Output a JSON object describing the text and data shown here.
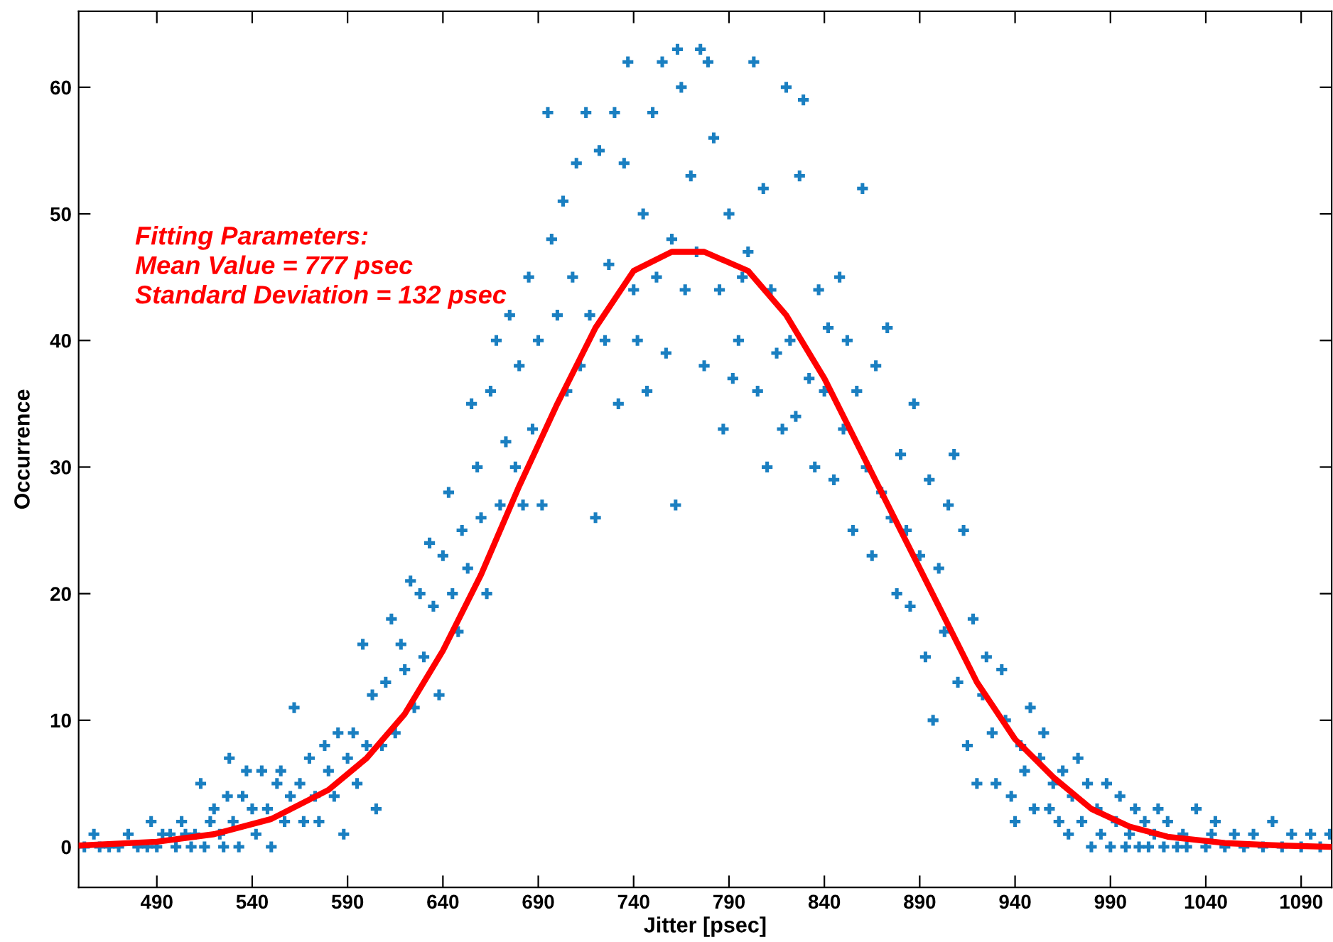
{
  "chart_data": {
    "type": "scatter",
    "xlabel": "Jitter [psec]",
    "ylabel": "Occurrence",
    "xlim": [
      449,
      1106
    ],
    "ylim": [
      -3.2,
      66
    ],
    "xticks": [
      490,
      540,
      590,
      640,
      690,
      740,
      790,
      840,
      890,
      940,
      990,
      1040,
      1090
    ],
    "yticks": [
      0,
      10,
      20,
      30,
      40,
      50,
      60
    ],
    "grid": false,
    "legend": false,
    "marker": "cross",
    "annotations": [
      "Fitting Parameters:\nMean Value = 777 psec\nStandard Deviation = 132 psec"
    ],
    "series": [
      {
        "color": "#1a7fc1",
        "x": [
          452,
          457,
          460,
          465,
          470,
          475,
          480,
          485,
          487,
          490,
          493,
          497,
          500,
          503,
          505,
          508,
          510,
          513,
          515,
          518,
          520,
          523,
          525,
          527,
          528,
          530,
          533,
          535,
          537,
          540,
          542,
          545,
          548,
          550,
          553,
          555,
          557,
          560,
          562,
          565,
          567,
          570,
          573,
          575,
          578,
          580,
          583,
          585,
          588,
          590,
          593,
          595,
          598,
          600,
          603,
          605,
          608,
          610,
          613,
          615,
          618,
          620,
          623,
          625,
          628,
          630,
          633,
          635,
          638,
          640,
          643,
          645,
          648,
          650,
          653,
          655,
          658,
          660,
          663,
          665,
          668,
          670,
          673,
          675,
          678,
          680,
          682,
          685,
          687,
          690,
          692,
          695,
          697,
          700,
          703,
          705,
          708,
          710,
          712,
          715,
          717,
          720,
          722,
          725,
          727,
          730,
          732,
          735,
          737,
          740,
          742,
          745,
          747,
          750,
          752,
          755,
          757,
          760,
          762,
          763,
          765,
          767,
          770,
          773,
          775,
          777,
          779,
          782,
          785,
          787,
          790,
          792,
          795,
          797,
          800,
          803,
          805,
          808,
          810,
          812,
          815,
          818,
          820,
          822,
          825,
          827,
          829,
          832,
          835,
          837,
          840,
          842,
          845,
          848,
          850,
          852,
          855,
          857,
          860,
          862,
          865,
          867,
          870,
          873,
          875,
          878,
          880,
          883,
          885,
          887,
          890,
          893,
          895,
          897,
          900,
          903,
          905,
          908,
          910,
          913,
          915,
          918,
          920,
          923,
          925,
          928,
          930,
          933,
          935,
          938,
          940,
          943,
          945,
          948,
          950,
          953,
          955,
          958,
          960,
          963,
          965,
          968,
          970,
          973,
          975,
          978,
          980,
          983,
          985,
          988,
          990,
          993,
          995,
          998,
          1000,
          1003,
          1005,
          1008,
          1010,
          1013,
          1015,
          1018,
          1020,
          1025,
          1028,
          1030,
          1035,
          1040,
          1043,
          1045,
          1050,
          1055,
          1060,
          1065,
          1070,
          1075,
          1080,
          1085,
          1090,
          1095,
          1100,
          1105
        ],
        "values": [
          0,
          1,
          0,
          0,
          0,
          1,
          0,
          0,
          2,
          0,
          1,
          1,
          0,
          2,
          1,
          0,
          1,
          5,
          0,
          2,
          3,
          1,
          0,
          4,
          7,
          2,
          0,
          4,
          6,
          3,
          1,
          6,
          3,
          0,
          5,
          6,
          2,
          4,
          11,
          5,
          2,
          7,
          4,
          2,
          8,
          6,
          4,
          9,
          1,
          7,
          9,
          5,
          16,
          8,
          12,
          3,
          8,
          13,
          18,
          9,
          16,
          14,
          21,
          11,
          20,
          15,
          24,
          19,
          12,
          23,
          28,
          20,
          17,
          25,
          22,
          35,
          30,
          26,
          20,
          36,
          40,
          27,
          32,
          42,
          30,
          38,
          27,
          45,
          33,
          40,
          27,
          58,
          48,
          42,
          51,
          36,
          45,
          54,
          38,
          58,
          42,
          26,
          55,
          40,
          46,
          58,
          35,
          54,
          62,
          44,
          40,
          50,
          36,
          58,
          45,
          62,
          39,
          48,
          27,
          63,
          60,
          44,
          53,
          47,
          63,
          38,
          62,
          56,
          44,
          33,
          50,
          37,
          40,
          45,
          47,
          62,
          36,
          52,
          30,
          44,
          39,
          33,
          60,
          40,
          34,
          53,
          59,
          37,
          30,
          44,
          36,
          41,
          29,
          45,
          33,
          40,
          25,
          36,
          52,
          30,
          23,
          38,
          28,
          41,
          26,
          20,
          31,
          25,
          19,
          35,
          23,
          15,
          29,
          10,
          22,
          17,
          27,
          31,
          13,
          25,
          8,
          18,
          5,
          12,
          15,
          9,
          5,
          14,
          10,
          4,
          2,
          8,
          6,
          11,
          3,
          7,
          9,
          3,
          5,
          2,
          6,
          1,
          4,
          7,
          2,
          5,
          0,
          3,
          1,
          5,
          0,
          2,
          4,
          0,
          1,
          3,
          0,
          2,
          0,
          1,
          3,
          0,
          2,
          0,
          1,
          0,
          3,
          0,
          1,
          2,
          0,
          1,
          0,
          1,
          0,
          2,
          0,
          1,
          0,
          1,
          0,
          1
        ]
      },
      {
        "type": "line",
        "color": "#ff0000",
        "marker": "none",
        "x": [
          449,
          490,
          520,
          550,
          580,
          600,
          620,
          640,
          660,
          680,
          700,
          720,
          740,
          760,
          777,
          800,
          820,
          840,
          860,
          880,
          900,
          920,
          940,
          960,
          980,
          1000,
          1020,
          1050,
          1080,
          1106
        ],
        "values": [
          0.1,
          0.4,
          1.0,
          2.2,
          4.5,
          7,
          10.5,
          15.5,
          21.5,
          28.5,
          35,
          41,
          45.5,
          47,
          47,
          45.5,
          42,
          37,
          31,
          25,
          19,
          13,
          8.5,
          5.5,
          3,
          1.6,
          0.8,
          0.3,
          0.1,
          0
        ]
      }
    ]
  }
}
